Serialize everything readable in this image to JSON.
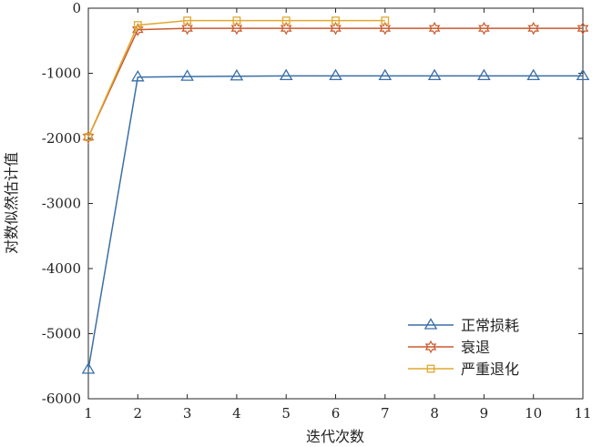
{
  "chart_data": {
    "type": "line",
    "title": "",
    "xlabel": "迭代次数",
    "ylabel": "对数似然估计值",
    "xlim": [
      1,
      11
    ],
    "ylim": [
      -6000,
      0
    ],
    "xticks": [
      1,
      2,
      3,
      4,
      5,
      6,
      7,
      8,
      9,
      10,
      11
    ],
    "yticks": [
      0,
      -1000,
      -2000,
      -3000,
      -4000,
      -5000,
      -6000
    ],
    "grid": false,
    "legend_position": "bottom-right",
    "series": [
      {
        "name": "正常损耗",
        "color": "#3a6fa8",
        "marker": "triangle",
        "x": [
          1,
          2,
          3,
          4,
          5,
          6,
          7,
          8,
          9,
          10,
          11
        ],
        "values": [
          -5550,
          -1060,
          -1050,
          -1045,
          -1040,
          -1040,
          -1040,
          -1040,
          -1040,
          -1040,
          -1040
        ]
      },
      {
        "name": "衰退",
        "color": "#c85a2e",
        "marker": "hexagram",
        "x": [
          1,
          2,
          3,
          4,
          5,
          6,
          7,
          8,
          9,
          10,
          11
        ],
        "values": [
          -1980,
          -330,
          -310,
          -310,
          -310,
          -310,
          -310,
          -310,
          -310,
          -310,
          -310
        ]
      },
      {
        "name": "严重退化",
        "color": "#e0a830",
        "marker": "square",
        "x": [
          1,
          2,
          3,
          4,
          5,
          6,
          7
        ],
        "values": [
          -1980,
          -260,
          -190,
          -190,
          -190,
          -190,
          -190
        ]
      }
    ]
  }
}
